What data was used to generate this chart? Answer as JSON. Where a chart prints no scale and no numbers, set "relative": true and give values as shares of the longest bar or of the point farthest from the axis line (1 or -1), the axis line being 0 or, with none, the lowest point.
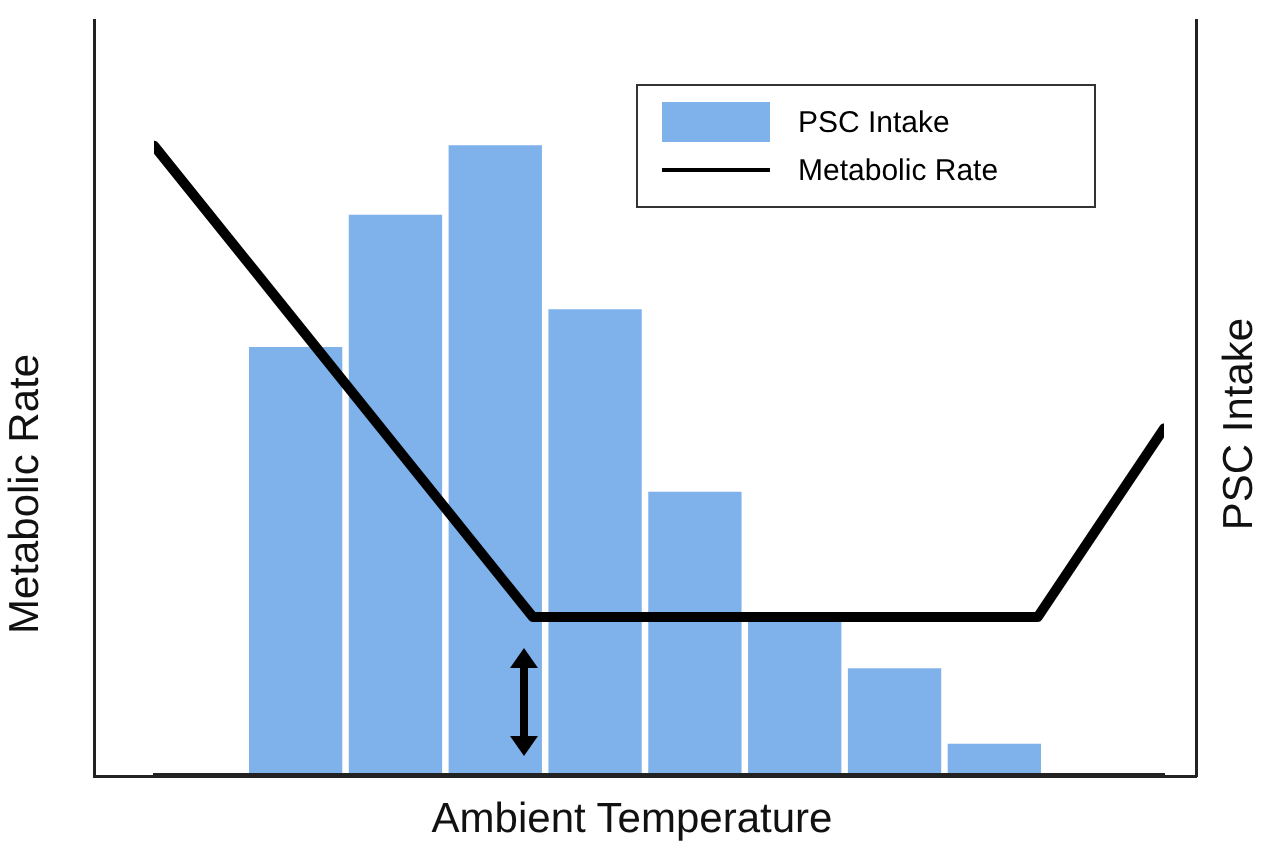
{
  "chart_data": [
    {
      "type": "bar",
      "xlabel": "Ambient Temperature",
      "y2label": "PSC Intake",
      "relative": true,
      "legend": "top right",
      "categories": [
        null,
        null,
        null,
        null,
        null,
        null,
        null,
        null
      ],
      "series": [
        {
          "name": "PSC Intake",
          "color": "#7fb1ea",
          "values": [
            0.68,
            0.89,
            1,
            0.74,
            0.45,
            0.25,
            0.17,
            0.05
          ]
        }
      ]
    },
    {
      "type": "line",
      "ylabel": "Metabolic Rate",
      "relative": true,
      "legend": "top right",
      "categories": [
        null,
        null,
        null,
        null,
        null,
        null,
        null,
        null,
        null
      ],
      "series": [
        {
          "name": "Metabolic Rate",
          "color": "#000000",
          "values": [
            1,
            0.75,
            0.5,
            0.25,
            0.25,
            0.25,
            0.25,
            0.25,
            0.55
          ]
        }
      ]
    }
  ]
}
